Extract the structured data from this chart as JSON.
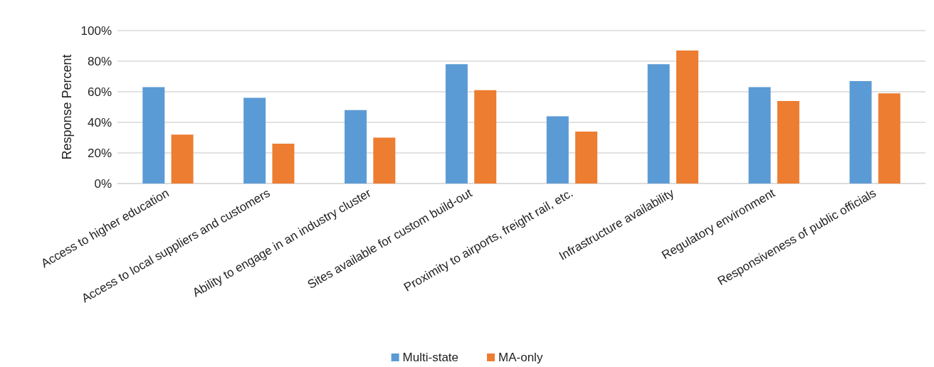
{
  "chart_data": {
    "type": "bar",
    "ylabel": "Response Percent",
    "categories": [
      "Access to higher education",
      "Access to local suppliers and customers",
      "Ability to engage in an industry cluster",
      "Sites available for custom build-out",
      "Proximity to airports, freight rail, etc.",
      "Infrastructure availability",
      "Regulatory environment",
      "Responsiveness of public officials"
    ],
    "series": [
      {
        "name": "Multi-state",
        "color": "#5b9bd5",
        "values": [
          63,
          56,
          48,
          78,
          44,
          78,
          63,
          67
        ]
      },
      {
        "name": "MA-only",
        "color": "#ed7d31",
        "values": [
          32,
          26,
          30,
          61,
          34,
          87,
          54,
          59
        ]
      }
    ],
    "ylim": [
      0,
      100
    ],
    "yticks": [
      {
        "value": 0,
        "label": "0%"
      },
      {
        "value": 20,
        "label": "20%"
      },
      {
        "value": 40,
        "label": "40%"
      },
      {
        "value": 60,
        "label": "60%"
      },
      {
        "value": 80,
        "label": "80%"
      },
      {
        "value": 100,
        "label": "100%"
      }
    ],
    "grid": "y",
    "legend": "bottom"
  }
}
